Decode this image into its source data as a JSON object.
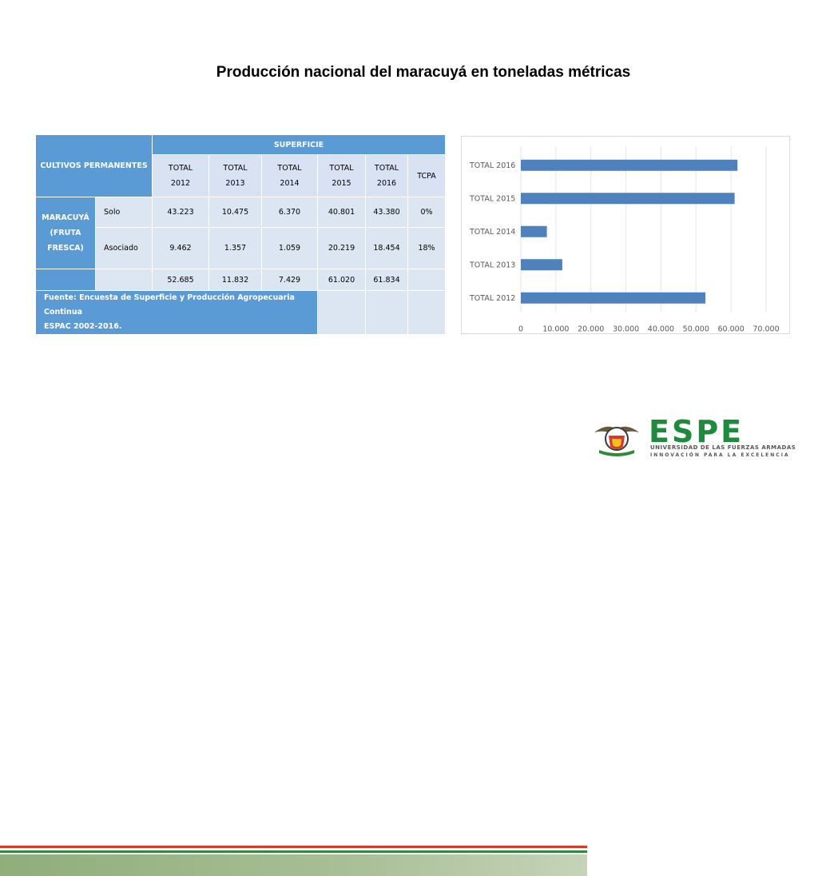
{
  "title": "Producción nacional del maracuyá en toneladas métricas",
  "table": {
    "crop_header": "CULTIVOS PERMANENTES",
    "superficie_header": "SUPERFICIE",
    "columns": [
      {
        "l1": "TOTAL",
        "l2": "2012"
      },
      {
        "l1": "TOTAL",
        "l2": "2013"
      },
      {
        "l1": "TOTAL",
        "l2": "2014"
      },
      {
        "l1": "TOTAL",
        "l2": "2015"
      },
      {
        "l1": "TOTAL",
        "l2": "2016"
      }
    ],
    "tcpa_header": "TCPA",
    "crop_name": {
      "l1": "MARACUYÁ",
      "l2": "(FRUTA",
      "l3": "FRESCA)"
    },
    "rows": [
      {
        "label": "Solo",
        "values": [
          "43.223",
          "10.475",
          "6.370",
          "40.801",
          "43.380"
        ],
        "tcpa": "0%"
      },
      {
        "label": "Asociado",
        "values": [
          "9.462",
          "1.357",
          "1.059",
          "20.219",
          "18.454"
        ],
        "tcpa": "18%"
      }
    ],
    "totals": [
      "52.685",
      "11.832",
      "7.429",
      "61.020",
      "61.834"
    ],
    "source_l1": "Fuente: Encuesta de Superficie y Producción Agropecuaria Continua",
    "source_l2": "ESPAC 2002-2016."
  },
  "chart_data": {
    "type": "bar",
    "orientation": "horizontal",
    "categories": [
      "TOTAL 2016",
      "TOTAL 2015",
      "TOTAL 2014",
      "TOTAL 2013",
      "TOTAL 2012"
    ],
    "values": [
      61834,
      61020,
      7429,
      11832,
      52685
    ],
    "xlim": [
      0,
      70000
    ],
    "xticks": [
      "0",
      "10.000",
      "20.000",
      "30.000",
      "40.000",
      "50.000",
      "60.000",
      "70.000"
    ],
    "grid": true,
    "color": "#4f81bd"
  },
  "footer": {
    "brand": "ESPE",
    "university": "UNIVERSIDAD DE LAS FUERZAS ARMADAS",
    "motto": "INNOVACIÓN PARA LA EXCELENCIA",
    "colors": {
      "red": "#d7392b",
      "green": "#2f8a3b"
    }
  }
}
